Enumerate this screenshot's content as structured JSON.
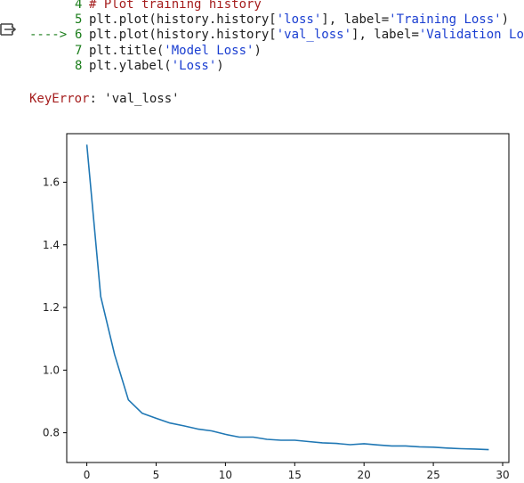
{
  "output_icon": "output-expand-icon",
  "traceback": {
    "arrow": "---->",
    "lines": [
      {
        "no": "4",
        "segments": [
          {
            "t": "# Plot training history",
            "k": "comment"
          }
        ]
      },
      {
        "no": "5",
        "segments": [
          {
            "t": "plt.plot(history.history[",
            "k": "plain"
          },
          {
            "t": "'loss'",
            "k": "str"
          },
          {
            "t": "], label=",
            "k": "plain"
          },
          {
            "t": "'Training Loss'",
            "k": "str"
          },
          {
            "t": ")",
            "k": "plain"
          }
        ]
      },
      {
        "no": "6",
        "current": true,
        "segments": [
          {
            "t": "plt.plot(history.history[",
            "k": "plain"
          },
          {
            "t": "'val_loss'",
            "k": "str"
          },
          {
            "t": "], label=",
            "k": "plain"
          },
          {
            "t": "'Validation Lo",
            "k": "str"
          }
        ]
      },
      {
        "no": "7",
        "segments": [
          {
            "t": "plt.title(",
            "k": "plain"
          },
          {
            "t": "'Model Loss'",
            "k": "str"
          },
          {
            "t": ")",
            "k": "plain"
          }
        ]
      },
      {
        "no": "8",
        "segments": [
          {
            "t": "plt.ylabel(",
            "k": "plain"
          },
          {
            "t": "'Loss'",
            "k": "str"
          },
          {
            "t": ")",
            "k": "plain"
          }
        ]
      }
    ]
  },
  "error": {
    "name": "KeyError",
    "message": ": 'val_loss'"
  },
  "colors": {
    "line": "#1f77b4",
    "comment": "#a51d1d",
    "string": "#1a3ed1",
    "lineno": "#1b7d1b"
  },
  "chart_data": {
    "type": "line",
    "title": "",
    "xlabel": "",
    "ylabel": "",
    "xlim": [
      -1.45,
      30.45
    ],
    "ylim": [
      0.705,
      1.755
    ],
    "xticks": [
      0,
      5,
      10,
      15,
      20,
      25,
      30
    ],
    "yticks": [
      0.8,
      1.0,
      1.2,
      1.4,
      1.6
    ],
    "ytick_labels": [
      "0.8",
      "1.0",
      "1.2",
      "1.4",
      "1.6"
    ],
    "grid": false,
    "series": [
      {
        "x": [
          0,
          1,
          2,
          3,
          4,
          5,
          6,
          7,
          8,
          9,
          10,
          11,
          12,
          13,
          14,
          15,
          16,
          17,
          18,
          19,
          20,
          21,
          22,
          23,
          24,
          25,
          26,
          27,
          28,
          29
        ],
        "values": [
          1.72,
          1.235,
          1.05,
          0.905,
          0.862,
          0.846,
          0.831,
          0.822,
          0.812,
          0.806,
          0.795,
          0.786,
          0.786,
          0.779,
          0.776,
          0.776,
          0.772,
          0.768,
          0.766,
          0.762,
          0.765,
          0.761,
          0.758,
          0.758,
          0.755,
          0.754,
          0.751,
          0.749,
          0.748,
          0.746
        ]
      }
    ]
  }
}
